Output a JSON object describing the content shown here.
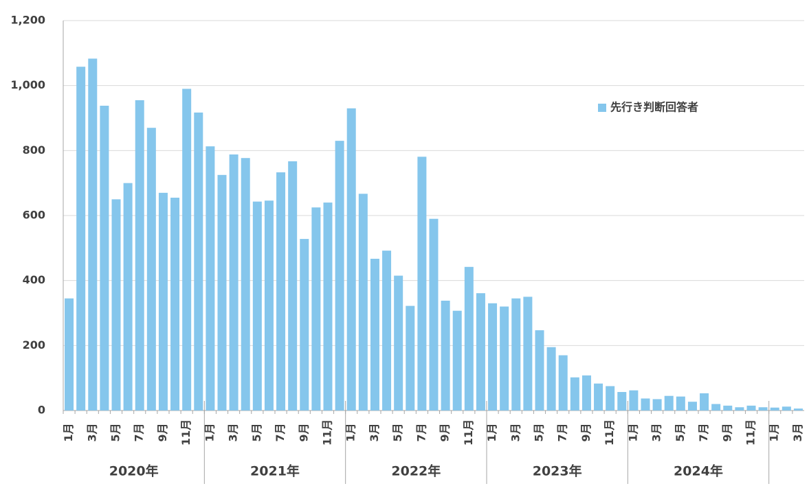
{
  "chart_data": {
    "type": "bar",
    "categories": [
      "1月",
      null,
      "3月",
      null,
      "5月",
      null,
      "7月",
      null,
      "9月",
      null,
      "11月",
      null,
      "1月",
      null,
      "3月",
      null,
      "5月",
      null,
      "7月",
      null,
      "9月",
      null,
      "11月",
      null,
      "1月",
      null,
      "3月",
      null,
      "5月",
      null,
      "7月",
      null,
      "9月",
      null,
      "11月",
      null,
      "1月",
      null,
      "3月",
      null,
      "5月",
      null,
      "7月",
      null,
      "9月",
      null,
      "11月",
      null,
      "1月",
      null,
      "3月",
      null,
      "5月",
      null,
      "7月",
      null,
      "9月",
      null,
      "11月",
      null,
      "1月",
      null,
      "3月"
    ],
    "year_groups": [
      "2020年",
      "2021年",
      "2022年",
      "2023年",
      "2024年",
      null
    ],
    "series": [
      {
        "name": "先行き判断回答者",
        "color": "#85c6ec",
        "values": [
          345,
          1058,
          1083,
          938,
          650,
          700,
          955,
          870,
          670,
          655,
          990,
          917,
          813,
          725,
          788,
          777,
          643,
          646,
          733,
          767,
          528,
          625,
          640,
          830,
          930,
          667,
          467,
          492,
          415,
          322,
          781,
          590,
          338,
          307,
          442,
          361,
          330,
          320,
          345,
          350,
          247,
          195,
          170,
          102,
          108,
          83,
          75,
          57,
          62,
          37,
          35,
          45,
          43,
          27,
          53,
          20,
          15,
          10,
          15,
          10,
          9,
          12,
          6
        ]
      }
    ],
    "ylim": [
      0,
      1200
    ],
    "yticks": [
      0,
      200,
      400,
      600,
      800,
      {
        "value": 1000,
        "label": "1,000"
      },
      {
        "value": 1200,
        "label": "1,200"
      }
    ],
    "grid": true,
    "legend": "upper-right"
  }
}
